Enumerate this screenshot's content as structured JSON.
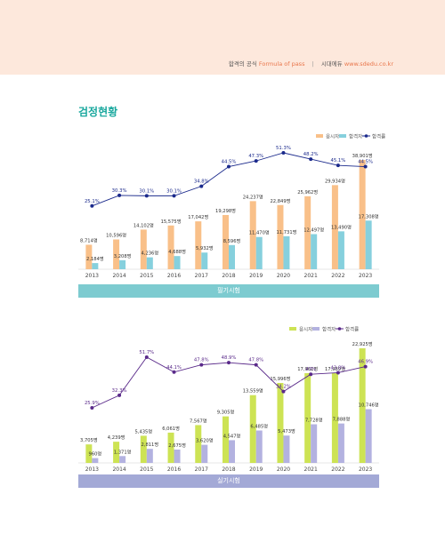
{
  "header": {
    "brand_ko": "합격의 공식",
    "brand_en": "Formula of pass",
    "divider": "|",
    "publisher": "시대에듀",
    "url": "www.sdedu.co.kr"
  },
  "section_title": "검정현황",
  "charts": {
    "written": {
      "caption": "필기시험"
    },
    "practical": {
      "caption": "실기시험"
    }
  },
  "colors": {
    "header_bg": "#fde8dc",
    "title": "#1aa89e",
    "written_applicants": "#f9c089",
    "written_passers": "#86d0dd",
    "written_line": "#1b2a8c",
    "practical_applicants": "#cde354",
    "practical_passers": "#b3b2e0",
    "practical_line": "#5a2a8a"
  },
  "chart_data": [
    {
      "id": "written",
      "type": "bar",
      "categories": [
        "2013",
        "2014",
        "2015",
        "2016",
        "2017",
        "2018",
        "2019",
        "2020",
        "2021",
        "2022",
        "2023"
      ],
      "series": [
        {
          "name": "응시자",
          "type": "bar",
          "values": [
            8714,
            10596,
            14102,
            15575,
            17042,
            19298,
            24237,
            22849,
            25962,
            29934,
            38901
          ],
          "labels": [
            "8,714명",
            "10,596명",
            "14,102명",
            "15,575명",
            "17,042명",
            "19,298명",
            "24,237명",
            "22,849명",
            "25,962명",
            "29,934명",
            "38,901명"
          ]
        },
        {
          "name": "합격자",
          "type": "bar",
          "values": [
            2184,
            3208,
            4236,
            4688,
            5932,
            8596,
            11470,
            11731,
            12497,
            13490,
            17308
          ],
          "labels": [
            "2,184명",
            "3,208명",
            "4,236명",
            "4,688명",
            "5,932명",
            "8,596명",
            "11,470명",
            "11,731명",
            "12,497명",
            "13,490명",
            "17,308명"
          ]
        },
        {
          "name": "합격률",
          "type": "line",
          "values": [
            25.1,
            30.3,
            30.1,
            30.1,
            34.8,
            44.5,
            47.3,
            51.3,
            48.2,
            45.1,
            44.5
          ],
          "labels": [
            "25.1%",
            "30.3%",
            "30.1%",
            "30.1%",
            "34.8%",
            "44.5%",
            "47.3%",
            "51.3%",
            "48.2%",
            "45.1%",
            "44.5%"
          ]
        }
      ],
      "legend": "top-right"
    },
    {
      "id": "practical",
      "type": "bar",
      "categories": [
        "2013",
        "2014",
        "2015",
        "2016",
        "2017",
        "2018",
        "2019",
        "2020",
        "2021",
        "2022",
        "2023"
      ],
      "series": [
        {
          "name": "응시자",
          "type": "bar",
          "values": [
            3705,
            4239,
            5435,
            6061,
            7567,
            9305,
            13559,
            15996,
            17961,
            17989,
            22925
          ],
          "labels": [
            "3,705명",
            "4,239명",
            "5,435명",
            "6,061명",
            "7,567명",
            "9,305명",
            "13,559명",
            "15,996명",
            "17,961명",
            "17,989명",
            "22,925명"
          ]
        },
        {
          "name": "합격자",
          "type": "bar",
          "values": [
            960,
            1371,
            2811,
            2675,
            3620,
            4547,
            6485,
            5473,
            7728,
            7888,
            10746
          ],
          "labels": [
            "960명",
            "1,371명",
            "2,811명",
            "2,675명",
            "3,620명",
            "4,547명",
            "6,485명",
            "5,473명",
            "7,728명",
            "7,888명",
            "10,746명"
          ]
        },
        {
          "name": "합격률",
          "type": "line",
          "values": [
            25.9,
            32.3,
            51.7,
            44.1,
            47.8,
            48.9,
            47.8,
            34.2,
            43.0,
            43.8,
            46.9
          ],
          "labels": [
            "25.9%",
            "32.3%",
            "51.7%",
            "44.1%",
            "47.8%",
            "48.9%",
            "47.8%",
            "34.2%",
            "43%",
            "43.8%",
            "46.9%"
          ]
        }
      ],
      "legend": "top-right"
    }
  ]
}
